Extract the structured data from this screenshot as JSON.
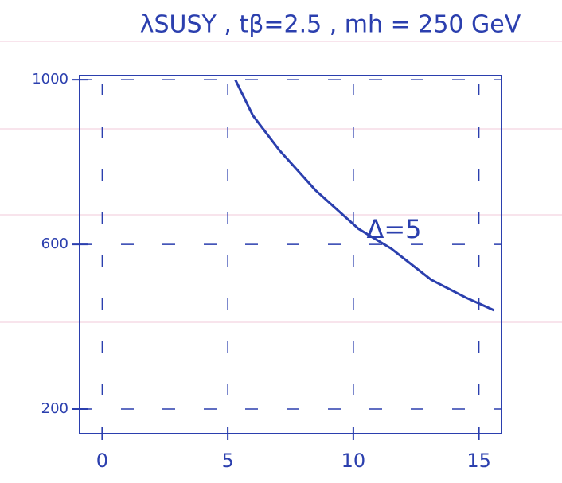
{
  "chart_data": {
    "type": "line",
    "title": "λSUSY , tβ=2.5 , mh = 250 GeV",
    "annotation": "Δ=5",
    "x": [
      5.3,
      6,
      7.05,
      8.5,
      10.2,
      11.5,
      13.1,
      14.5,
      15.6
    ],
    "series": [
      {
        "color": "#2b3fae",
        "values": [
          1000,
          913,
          829,
          731,
          638,
          590,
          514,
          470,
          440
        ]
      }
    ],
    "xlim": [
      -0.9,
      15.9
    ],
    "xticks": [
      0,
      5,
      10,
      15
    ],
    "ylim": [
      140,
      1010
    ],
    "yticks": [
      200,
      600,
      1000
    ],
    "grid": true
  }
}
